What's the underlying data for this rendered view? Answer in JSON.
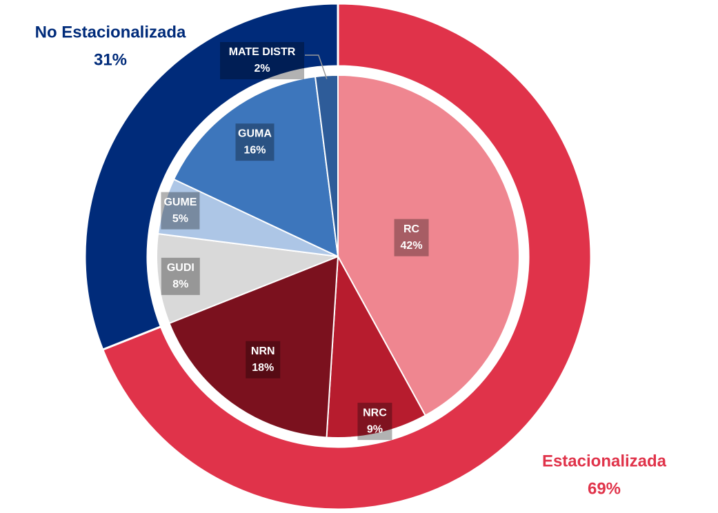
{
  "chart_data": {
    "type": "sunburst",
    "outer": {
      "categories": [
        "Estacionalizada",
        "No Estacionalizada"
      ],
      "values": [
        69,
        31
      ],
      "value_labels": [
        "69%",
        "31%"
      ],
      "colors": [
        "#e0334a",
        "#002b7a"
      ]
    },
    "inner": {
      "categories": [
        "RC",
        "NRC",
        "NRN",
        "GUDI",
        "GUME",
        "GUMA",
        "MATE DISTR"
      ],
      "values": [
        42,
        9,
        18,
        8,
        5,
        16,
        2
      ],
      "value_labels": [
        "42%",
        "9%",
        "18%",
        "8%",
        "5%",
        "16%",
        "2%"
      ],
      "colors": [
        "#ef8690",
        "#b71c2e",
        "#7b111e",
        "#d9d9d9",
        "#adc6e6",
        "#3d76bc",
        "#2e5c99"
      ]
    }
  }
}
